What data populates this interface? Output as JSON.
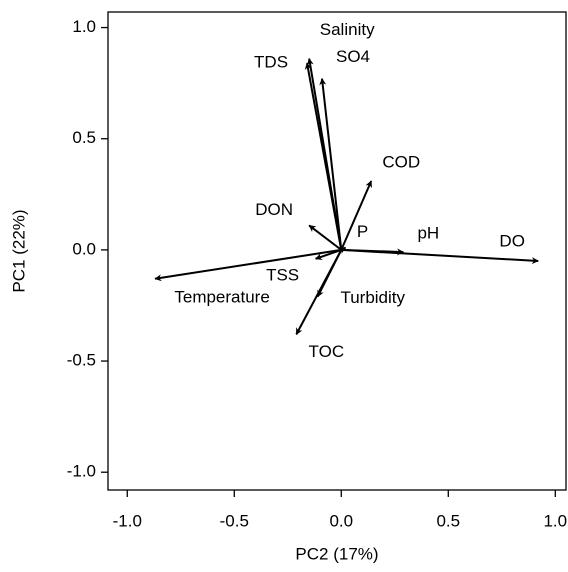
{
  "chart_data": {
    "type": "biplot",
    "xlabel": "PC2 (17%)",
    "ylabel": "PC1 (22%)",
    "xlim": [
      -1.09,
      1.05
    ],
    "ylim": [
      -1.08,
      1.07
    ],
    "xticks": [
      {
        "value": -1,
        "label": "-1.0"
      },
      {
        "value": -0.5,
        "label": "-0.5"
      },
      {
        "value": 0,
        "label": "0.0"
      },
      {
        "value": 0.5,
        "label": "0.5"
      },
      {
        "value": 1,
        "label": "1.0"
      }
    ],
    "yticks": [
      {
        "value": -1,
        "label": "-1.0"
      },
      {
        "value": -0.5,
        "label": "-0.5"
      },
      {
        "value": 0,
        "label": "0.0"
      },
      {
        "value": 0.5,
        "label": "0.5"
      },
      {
        "value": 1,
        "label": "1.0"
      }
    ],
    "color": "#000000",
    "vectors": [
      {
        "name": "Salinity",
        "x": -0.15,
        "y": 0.86
      },
      {
        "name": "TDS",
        "x": -0.16,
        "y": 0.84
      },
      {
        "name": "SO4",
        "x": -0.09,
        "y": 0.77
      },
      {
        "name": "COD",
        "x": 0.14,
        "y": 0.31
      },
      {
        "name": "DON",
        "x": -0.15,
        "y": 0.11
      },
      {
        "name": "P",
        "x": 0.02,
        "y": 0.01
      },
      {
        "name": "pH",
        "x": 0.29,
        "y": -0.01
      },
      {
        "name": "DO",
        "x": 0.92,
        "y": -0.05
      },
      {
        "name": "Temperature",
        "x": -0.87,
        "y": -0.13
      },
      {
        "name": "TSS",
        "x": -0.12,
        "y": -0.04
      },
      {
        "name": "Turbidity",
        "x": -0.11,
        "y": -0.21
      },
      {
        "name": "TOC",
        "x": -0.21,
        "y": -0.38
      }
    ]
  }
}
